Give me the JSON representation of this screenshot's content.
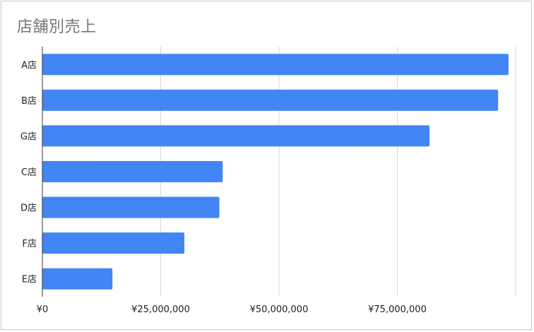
{
  "chart_data": {
    "type": "bar",
    "orientation": "horizontal",
    "title": "店舗別売上",
    "categories": [
      "A店",
      "B店",
      "G店",
      "C店",
      "D店",
      "F店",
      "E店"
    ],
    "values": [
      98500000,
      96300000,
      81800000,
      38100000,
      37400000,
      30000000,
      14800000
    ],
    "xlim": [
      0,
      100000000
    ],
    "x_ticks": [
      0,
      25000000,
      50000000,
      75000000
    ],
    "x_tick_labels": [
      "¥0",
      "¥25,000,000",
      "¥50,000,000",
      "¥75,000,000"
    ],
    "xlabel": "",
    "ylabel": "",
    "grid": "vertical",
    "legend": "none",
    "bar_color": "#4285f4"
  }
}
